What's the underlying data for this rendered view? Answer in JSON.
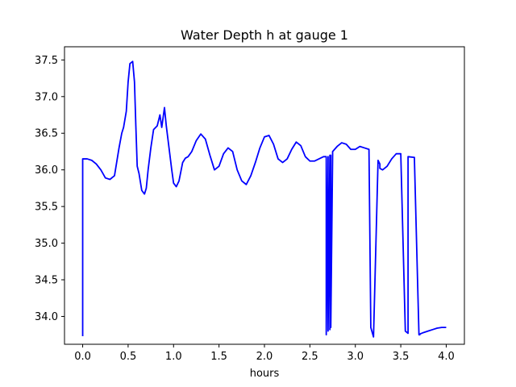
{
  "chart_data": {
    "type": "line",
    "title": "Water Depth h at gauge 1",
    "xlabel": "hours",
    "ylabel": "",
    "xlim": [
      -0.2,
      4.2
    ],
    "ylim": [
      33.62,
      37.68
    ],
    "x_ticks": [
      0.0,
      0.5,
      1.0,
      1.5,
      2.0,
      2.5,
      3.0,
      3.5,
      4.0
    ],
    "x_tick_labels": [
      "0.0",
      "0.5",
      "1.0",
      "1.5",
      "2.0",
      "2.5",
      "3.0",
      "3.5",
      "4.0"
    ],
    "y_ticks": [
      34.0,
      34.5,
      35.0,
      35.5,
      36.0,
      36.5,
      37.0,
      37.5
    ],
    "y_tick_labels": [
      "34.0",
      "34.5",
      "35.0",
      "35.5",
      "36.0",
      "36.5",
      "37.0",
      "37.5"
    ],
    "grid": false,
    "line_color": "#0000ff",
    "series": [
      {
        "x": [
          0.0,
          0.0,
          0.05,
          0.1,
          0.15,
          0.2,
          0.25,
          0.3,
          0.35,
          0.4,
          0.43,
          0.45,
          0.48,
          0.5,
          0.52,
          0.55,
          0.57,
          0.585,
          0.6,
          0.62,
          0.65,
          0.68,
          0.7,
          0.72,
          0.75,
          0.78,
          0.82,
          0.85,
          0.87,
          0.9,
          0.92,
          0.95,
          0.98,
          1.0,
          1.03,
          1.06,
          1.1,
          1.13,
          1.16,
          1.2,
          1.25,
          1.3,
          1.35,
          1.4,
          1.45,
          1.5,
          1.55,
          1.6,
          1.65,
          1.7,
          1.75,
          1.8,
          1.85,
          1.9,
          1.95,
          2.0,
          2.05,
          2.1,
          2.15,
          2.2,
          2.25,
          2.3,
          2.35,
          2.4,
          2.45,
          2.5,
          2.55,
          2.6,
          2.65,
          2.68,
          2.68,
          2.7,
          2.7,
          2.72,
          2.72,
          2.73,
          2.73,
          2.75,
          2.75,
          2.8,
          2.85,
          2.9,
          2.95,
          3.0,
          3.05,
          3.1,
          3.15,
          3.17,
          3.17,
          3.2,
          3.25,
          3.27,
          3.27,
          3.3,
          3.35,
          3.4,
          3.45,
          3.5,
          3.55,
          3.58,
          3.58,
          3.65,
          3.65,
          3.7,
          3.7,
          3.71,
          3.71,
          3.75,
          3.8,
          3.85,
          3.9,
          3.95,
          4.0
        ],
        "y": [
          33.73,
          36.15,
          36.15,
          36.13,
          36.08,
          36.0,
          35.89,
          35.87,
          35.92,
          36.3,
          36.5,
          36.58,
          36.8,
          37.2,
          37.45,
          37.48,
          37.2,
          36.6,
          36.05,
          35.95,
          35.72,
          35.67,
          35.75,
          36.0,
          36.3,
          36.55,
          36.6,
          36.75,
          36.58,
          36.85,
          36.6,
          36.3,
          36.0,
          35.82,
          35.77,
          35.85,
          36.1,
          36.16,
          36.18,
          36.25,
          36.4,
          36.49,
          36.42,
          36.2,
          36.0,
          36.05,
          36.22,
          36.3,
          36.25,
          36.0,
          35.85,
          35.8,
          35.92,
          36.1,
          36.3,
          36.45,
          36.47,
          36.35,
          36.15,
          36.1,
          36.15,
          36.28,
          36.38,
          36.33,
          36.18,
          36.12,
          36.12,
          36.15,
          36.18,
          36.18,
          33.75,
          36.18,
          33.8,
          36.2,
          33.82,
          36.2,
          33.85,
          36.2,
          36.25,
          36.32,
          36.37,
          36.35,
          36.28,
          36.28,
          36.32,
          36.3,
          36.28,
          33.88,
          33.85,
          33.72,
          36.13,
          36.08,
          36.02,
          36.0,
          36.05,
          36.15,
          36.22,
          36.22,
          33.8,
          33.77,
          36.18,
          36.17,
          36.15,
          33.75,
          33.75,
          33.75,
          33.76,
          33.78,
          33.8,
          33.82,
          33.84,
          33.85,
          33.85
        ]
      }
    ]
  }
}
